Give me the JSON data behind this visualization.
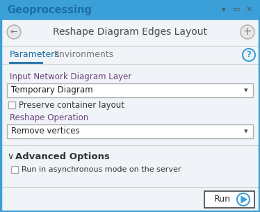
{
  "title_bar_text": "Geoprocessing",
  "title_bar_bg": "#3b9fd8",
  "title_bar_text_color": "#1a6eaa",
  "body_bg": "#f0f4f8",
  "border_color_top": "#3b9fd8",
  "border_color_bottom": "#3b9fd8",
  "main_title": "Reshape Diagram Edges Layout",
  "main_title_color": "#4a4a4a",
  "tab1": "Parameters",
  "tab2": "Environments",
  "tab_underline_color": "#1c6ea4",
  "label1": "Input Network Diagram Layer",
  "label1_color": "#6b3f7a",
  "dropdown1_text": "Temporary Diagram",
  "dropdown_bg": "#ffffff",
  "dropdown_border": "#b0b0b0",
  "checkbox1_label": "Preserve container layout",
  "label2": "Reshape Operation",
  "label2_color": "#6b3f7a",
  "dropdown2_text": "Remove vertices",
  "advanced_text": "Advanced Options",
  "chevron": "∨",
  "checkbox2_label": "Run in asynchronous mode on the server",
  "run_text": "Run",
  "run_icon_color": "#3b9fd8",
  "help_icon_color": "#3b9fd8",
  "icon_gray": "#888888",
  "separator_color": "#d0d0d0",
  "inner_bg": "#f5f7fa"
}
